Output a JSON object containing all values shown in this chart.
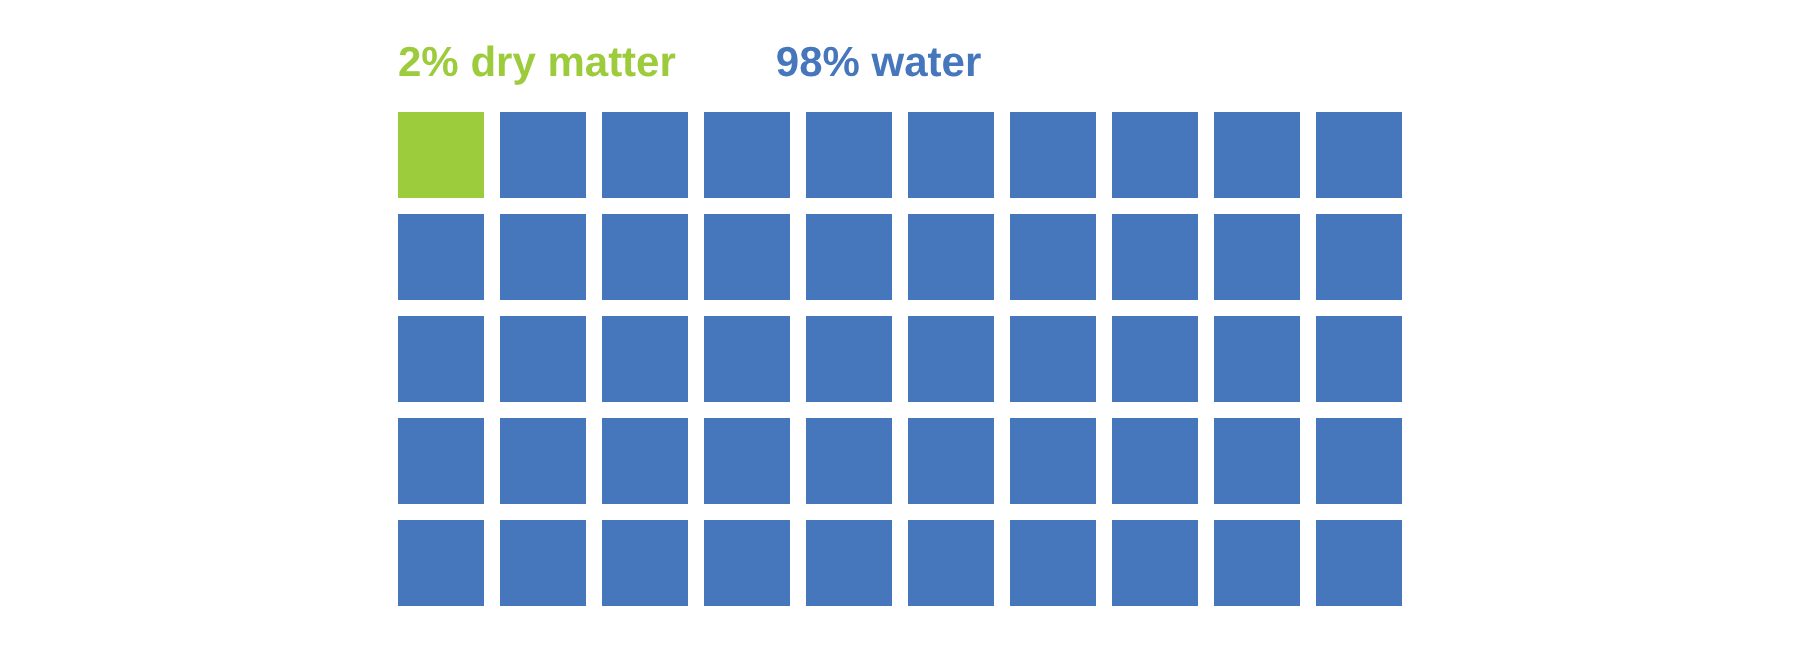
{
  "chart_data": {
    "type": "other",
    "categories": [
      "dry matter",
      "water"
    ],
    "values": [
      2,
      98
    ],
    "value_labels": [
      "2%",
      "98%"
    ],
    "colors": [
      "#9ccb3b",
      "#4676bc"
    ]
  }
}
